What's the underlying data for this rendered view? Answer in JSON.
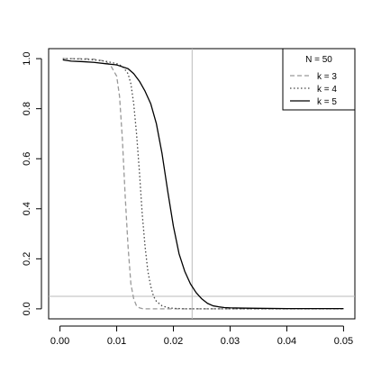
{
  "chart_data": {
    "type": "line",
    "title": "",
    "xlabel": "",
    "ylabel": "",
    "xlim": [
      0.0,
      0.05
    ],
    "ylim": [
      0.0,
      1.0
    ],
    "x_ticks": [
      0.0,
      0.01,
      0.02,
      0.03,
      0.04,
      0.05
    ],
    "x_tick_labels": [
      "0.00",
      "0.01",
      "0.02",
      "0.03",
      "0.04",
      "0.05"
    ],
    "y_ticks": [
      0.0,
      0.2,
      0.4,
      0.6,
      0.8,
      1.0
    ],
    "y_tick_labels": [
      "0.0",
      "0.2",
      "0.4",
      "0.6",
      "0.8",
      "1.0"
    ],
    "grid": false,
    "legend": {
      "placement": "top-right",
      "title": "N =  50",
      "entries": [
        {
          "label": "k =  3",
          "style": "dashed",
          "color": "#999999"
        },
        {
          "label": "k =  4",
          "style": "dotted",
          "color": "#444444"
        },
        {
          "label": "k =  5",
          "style": "solid",
          "color": "#000000"
        }
      ]
    },
    "reference_lines": {
      "horizontal": {
        "y": 0.05,
        "color": "#bbbbbb"
      },
      "vertical": {
        "x": 0.0233,
        "color": "#bbbbbb"
      }
    },
    "series": [
      {
        "name": "k =  3",
        "style": "dashed",
        "color": "#999999",
        "x": [
          0.0005,
          0.002,
          0.004,
          0.006,
          0.008,
          0.009,
          0.01,
          0.0105,
          0.011,
          0.0115,
          0.012,
          0.0125,
          0.013,
          0.0135,
          0.014,
          0.0145,
          0.015,
          0.02,
          0.03,
          0.04,
          0.05
        ],
        "y": [
          1.0,
          1.0,
          1.0,
          0.998,
          0.99,
          0.97,
          0.93,
          0.85,
          0.68,
          0.45,
          0.25,
          0.1,
          0.04,
          0.012,
          0.004,
          0.001,
          0.0,
          0.0,
          0.0,
          0.0,
          0.0
        ]
      },
      {
        "name": "k =  4",
        "style": "dotted",
        "color": "#444444",
        "x": [
          0.0005,
          0.002,
          0.004,
          0.006,
          0.008,
          0.01,
          0.011,
          0.012,
          0.0125,
          0.013,
          0.0135,
          0.014,
          0.0145,
          0.015,
          0.0155,
          0.016,
          0.0165,
          0.017,
          0.018,
          0.019,
          0.02,
          0.022,
          0.025,
          0.03,
          0.04,
          0.05
        ],
        "y": [
          1.0,
          1.0,
          0.998,
          0.995,
          0.99,
          0.98,
          0.97,
          0.94,
          0.9,
          0.82,
          0.7,
          0.55,
          0.38,
          0.25,
          0.15,
          0.09,
          0.05,
          0.03,
          0.012,
          0.005,
          0.002,
          0.0,
          0.0,
          0.0,
          0.0,
          0.0
        ]
      },
      {
        "name": "k =  5",
        "style": "solid",
        "color": "#000000",
        "x": [
          0.0005,
          0.002,
          0.004,
          0.006,
          0.008,
          0.01,
          0.012,
          0.013,
          0.014,
          0.015,
          0.016,
          0.017,
          0.018,
          0.019,
          0.02,
          0.021,
          0.022,
          0.023,
          0.024,
          0.025,
          0.026,
          0.027,
          0.028,
          0.029,
          0.03,
          0.032,
          0.035,
          0.04,
          0.045,
          0.05
        ],
        "y": [
          0.995,
          0.99,
          0.988,
          0.985,
          0.98,
          0.975,
          0.96,
          0.94,
          0.91,
          0.87,
          0.82,
          0.74,
          0.62,
          0.47,
          0.33,
          0.22,
          0.15,
          0.1,
          0.065,
          0.04,
          0.022,
          0.012,
          0.008,
          0.005,
          0.004,
          0.003,
          0.002,
          0.001,
          0.001,
          0.001
        ]
      }
    ]
  }
}
